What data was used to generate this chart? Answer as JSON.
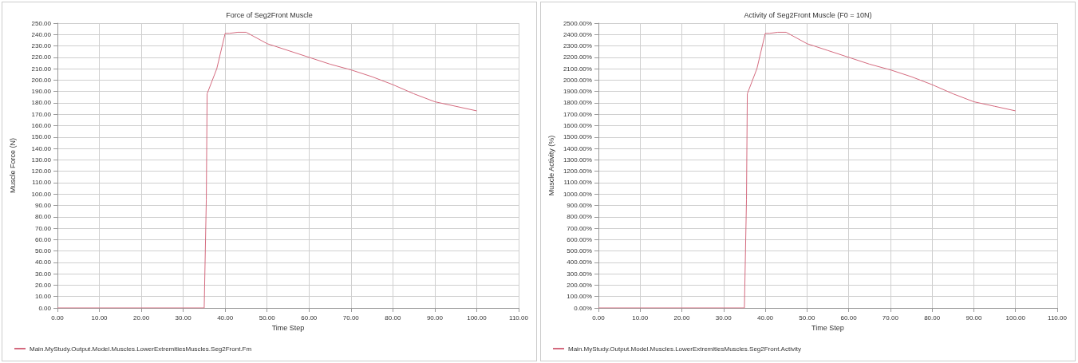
{
  "chart_data": [
    {
      "type": "line",
      "title": "Force of Seg2Front Muscle",
      "xlabel": "Time Step",
      "ylabel": "Muscle Force (N)",
      "legend": "bottom",
      "grid": true,
      "x": [
        0,
        10,
        20,
        30,
        35,
        35.5,
        35.7,
        38,
        40,
        41,
        43,
        45,
        50,
        55,
        60,
        65,
        70,
        75,
        80,
        85,
        90,
        95,
        100
      ],
      "series": [
        {
          "name": "Main.MyStudy.Output.Model.Muscles.LowerExtremitiesMuscles.Seg2Front.Fm",
          "color": "#d46a7e",
          "values": [
            0,
            0,
            0,
            0,
            0,
            95,
            188,
            210,
            241,
            241,
            242,
            242,
            232,
            226,
            220,
            214,
            209,
            203,
            196,
            188,
            181,
            177,
            173
          ]
        }
      ],
      "xlim": [
        0,
        110
      ],
      "xticks": [
        {
          "value": 0,
          "label": "0.00"
        },
        {
          "value": 10,
          "label": "10.00"
        },
        {
          "value": 20,
          "label": "20.00"
        },
        {
          "value": 30,
          "label": "30.00"
        },
        {
          "value": 40,
          "label": "40.00"
        },
        {
          "value": 50,
          "label": "50.00"
        },
        {
          "value": 60,
          "label": "60.00"
        },
        {
          "value": 70,
          "label": "70.00"
        },
        {
          "value": 80,
          "label": "80.00"
        },
        {
          "value": 90,
          "label": "90.00"
        },
        {
          "value": 100,
          "label": "100.00"
        },
        {
          "value": 110,
          "label": "110.00"
        }
      ],
      "ylim": [
        0,
        250
      ],
      "yticks": [
        {
          "value": 0,
          "label": "0.00"
        },
        {
          "value": 10,
          "label": "10.00"
        },
        {
          "value": 20,
          "label": "20.00"
        },
        {
          "value": 30,
          "label": "30.00"
        },
        {
          "value": 40,
          "label": "40.00"
        },
        {
          "value": 50,
          "label": "50.00"
        },
        {
          "value": 60,
          "label": "60.00"
        },
        {
          "value": 70,
          "label": "70.00"
        },
        {
          "value": 80,
          "label": "80.00"
        },
        {
          "value": 90,
          "label": "90.00"
        },
        {
          "value": 100,
          "label": "100.00"
        },
        {
          "value": 110,
          "label": "110.00"
        },
        {
          "value": 120,
          "label": "120.00"
        },
        {
          "value": 130,
          "label": "130.00"
        },
        {
          "value": 140,
          "label": "140.00"
        },
        {
          "value": 150,
          "label": "150.00"
        },
        {
          "value": 160,
          "label": "160.00"
        },
        {
          "value": 170,
          "label": "170.00"
        },
        {
          "value": 180,
          "label": "180.00"
        },
        {
          "value": 190,
          "label": "190.00"
        },
        {
          "value": 200,
          "label": "200.00"
        },
        {
          "value": 210,
          "label": "210.00"
        },
        {
          "value": 220,
          "label": "220.00"
        },
        {
          "value": 230,
          "label": "230.00"
        },
        {
          "value": 240,
          "label": "240.00"
        },
        {
          "value": 250,
          "label": "250.00"
        }
      ]
    },
    {
      "type": "line",
      "title": "Activity of Seg2Front Muscle (F0 = 10N)",
      "xlabel": "Time Step",
      "ylabel": "Muscle Activity (%)",
      "legend": "bottom",
      "grid": true,
      "x": [
        0,
        10,
        20,
        30,
        35,
        35.5,
        35.7,
        38,
        40,
        41,
        43,
        45,
        50,
        55,
        60,
        65,
        70,
        75,
        80,
        85,
        90,
        95,
        100
      ],
      "series": [
        {
          "name": "Main.MyStudy.Output.Model.Muscles.LowerExtremitiesMuscles.Seg2Front.Activity",
          "color": "#d46a7e",
          "values": [
            0,
            0,
            0,
            0,
            0,
            950,
            1880,
            2100,
            2410,
            2410,
            2420,
            2420,
            2320,
            2260,
            2200,
            2140,
            2090,
            2030,
            1960,
            1880,
            1810,
            1770,
            1730
          ]
        }
      ],
      "xlim": [
        0,
        110
      ],
      "xticks": [
        {
          "value": 0,
          "label": "0.00"
        },
        {
          "value": 10,
          "label": "10.00"
        },
        {
          "value": 20,
          "label": "20.00"
        },
        {
          "value": 30,
          "label": "30.00"
        },
        {
          "value": 40,
          "label": "40.00"
        },
        {
          "value": 50,
          "label": "50.00"
        },
        {
          "value": 60,
          "label": "60.00"
        },
        {
          "value": 70,
          "label": "70.00"
        },
        {
          "value": 80,
          "label": "80.00"
        },
        {
          "value": 90,
          "label": "90.00"
        },
        {
          "value": 100,
          "label": "100.00"
        },
        {
          "value": 110,
          "label": "110.00"
        }
      ],
      "ylim": [
        0,
        2500
      ],
      "yticks": [
        {
          "value": 0,
          "label": "0.00%"
        },
        {
          "value": 100,
          "label": "100.00%"
        },
        {
          "value": 200,
          "label": "200.00%"
        },
        {
          "value": 300,
          "label": "300.00%"
        },
        {
          "value": 400,
          "label": "400.00%"
        },
        {
          "value": 500,
          "label": "500.00%"
        },
        {
          "value": 600,
          "label": "600.00%"
        },
        {
          "value": 700,
          "label": "700.00%"
        },
        {
          "value": 800,
          "label": "800.00%"
        },
        {
          "value": 900,
          "label": "900.00%"
        },
        {
          "value": 1000,
          "label": "1000.00%"
        },
        {
          "value": 1100,
          "label": "1100.00%"
        },
        {
          "value": 1200,
          "label": "1200.00%"
        },
        {
          "value": 1300,
          "label": "1300.00%"
        },
        {
          "value": 1400,
          "label": "1400.00%"
        },
        {
          "value": 1500,
          "label": "1500.00%"
        },
        {
          "value": 1600,
          "label": "1600.00%"
        },
        {
          "value": 1700,
          "label": "1700.00%"
        },
        {
          "value": 1800,
          "label": "1800.00%"
        },
        {
          "value": 1900,
          "label": "1900.00%"
        },
        {
          "value": 2000,
          "label": "2000.00%"
        },
        {
          "value": 2100,
          "label": "2100.00%"
        },
        {
          "value": 2200,
          "label": "2200.00%"
        },
        {
          "value": 2300,
          "label": "2300.00%"
        },
        {
          "value": 2400,
          "label": "2400.00%"
        },
        {
          "value": 2500,
          "label": "2500.00%"
        }
      ]
    }
  ]
}
